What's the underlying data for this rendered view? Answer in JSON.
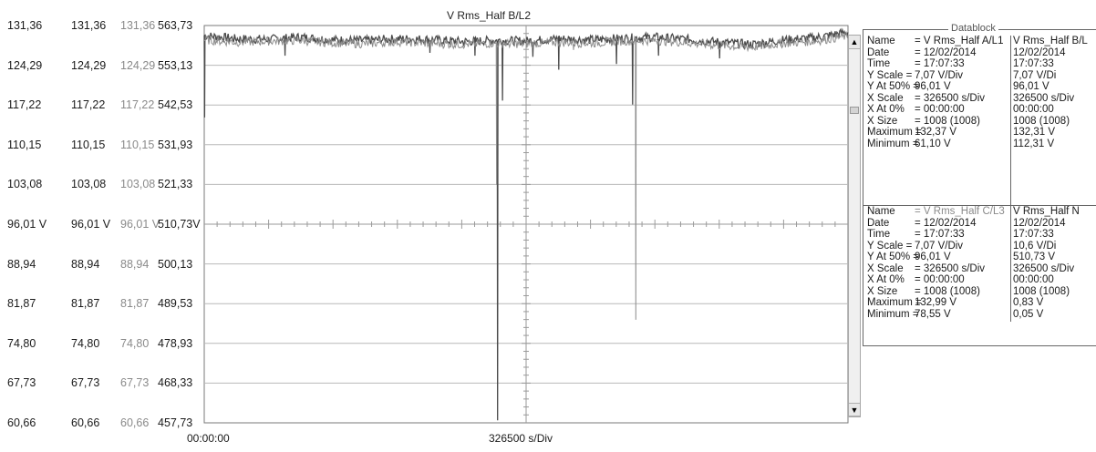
{
  "chart_data": {
    "type": "line",
    "title": "V Rms_Half B/L2",
    "x_start_label": "00:00:00",
    "x_scale_label": "326500 s/Div",
    "y_ticks": [
      {
        "a": "131,36",
        "b": "131,36",
        "c": "131,36",
        "n": "563,73"
      },
      {
        "a": "124,29",
        "b": "124,29",
        "c": "124,29",
        "n": "553,13"
      },
      {
        "a": "117,22",
        "b": "117,22",
        "c": "117,22",
        "n": "542,53"
      },
      {
        "a": "110,15",
        "b": "110,15",
        "c": "110,15",
        "n": "531,93"
      },
      {
        "a": "103,08",
        "b": "103,08",
        "c": "103,08",
        "n": "521,33"
      },
      {
        "a": "96,01 V",
        "b": "96,01 V",
        "c": "96,01 V",
        "n": "510,73V"
      },
      {
        "a": "88,94",
        "b": "88,94",
        "c": "88,94",
        "n": "500,13"
      },
      {
        "a": "81,87",
        "b": "81,87",
        "c": "81,87",
        "n": "489,53"
      },
      {
        "a": "74,80",
        "b": "74,80",
        "c": "74,80",
        "n": "478,93"
      },
      {
        "a": "67,73",
        "b": "67,73",
        "c": "67,73",
        "n": "468,33"
      },
      {
        "a": "60,66",
        "b": "60,66",
        "c": "60,66",
        "n": "457,73"
      }
    ],
    "ylim": [
      60.66,
      131.36
    ],
    "xlim": [
      0,
      3265000
    ],
    "x_divisions": 10,
    "y_divisions": 10,
    "grid": true,
    "series": [
      {
        "baseline": [
          [
            0,
            129.6
          ],
          [
            163250,
            129.0
          ],
          [
            326500,
            128.9
          ],
          [
            489750,
            129.3
          ],
          [
            653000,
            128.8
          ],
          [
            816250,
            128.7
          ],
          [
            979500,
            129.0
          ],
          [
            1142750,
            128.9
          ],
          [
            1306000,
            128.5
          ],
          [
            1469250,
            128.7
          ],
          [
            1632500,
            128.6
          ],
          [
            1795750,
            129.0
          ],
          [
            1959000,
            128.8
          ],
          [
            2122250,
            129.1
          ],
          [
            2285500,
            129.3
          ],
          [
            2448750,
            128.9
          ],
          [
            2612000,
            128.4
          ],
          [
            2775250,
            128.0
          ],
          [
            2938500,
            128.8
          ],
          [
            3101750,
            129.2
          ],
          [
            3265000,
            130.2
          ]
        ],
        "dips": [
          [
            0,
            115.0
          ],
          [
            408100,
            126.0
          ],
          [
            1142700,
            126.5
          ],
          [
            1371300,
            126.0
          ],
          [
            1486000,
            61.1
          ],
          [
            1511000,
            118.0
          ],
          [
            1665000,
            125.8
          ],
          [
            1796000,
            123.5
          ],
          [
            2089000,
            124.5
          ],
          [
            2171000,
            117.3
          ],
          [
            2302000,
            126.0
          ],
          [
            2612000,
            125.5
          ]
        ],
        "color": "#4a4a4a"
      },
      {
        "baseline": [
          [
            0,
            128.8
          ],
          [
            163250,
            128.4
          ],
          [
            326500,
            128.6
          ],
          [
            489750,
            128.7
          ],
          [
            653000,
            128.3
          ],
          [
            816250,
            128.1
          ],
          [
            979500,
            128.5
          ],
          [
            1142750,
            128.2
          ],
          [
            1306000,
            128.0
          ],
          [
            1469250,
            128.2
          ],
          [
            1632500,
            128.1
          ],
          [
            1795750,
            128.4
          ],
          [
            1959000,
            128.2
          ],
          [
            2122250,
            128.6
          ],
          [
            2285500,
            128.7
          ],
          [
            2448750,
            128.3
          ],
          [
            2612000,
            127.8
          ],
          [
            2775250,
            127.5
          ],
          [
            2938500,
            128.2
          ],
          [
            3101750,
            128.6
          ],
          [
            3265000,
            129.5
          ]
        ],
        "dips": [
          [
            1481000,
            103.0
          ],
          [
            1871000,
            127.0
          ],
          [
            2187000,
            79.0
          ]
        ],
        "color": "#8c8c8c"
      }
    ]
  },
  "datablock": {
    "title": "Datablock",
    "sections": [
      {
        "rows": [
          {
            "label": "Name",
            "value": "= V Rms_Half A/L1",
            "alt": "V Rms_Half B/L"
          },
          {
            "label": "Date",
            "value": "= 12/02/2014",
            "alt": "12/02/2014"
          },
          {
            "label": "Time",
            "value": "= 17:07:33",
            "alt": "17:07:33"
          },
          {
            "label": "Y Scale  =",
            "value": "7,07 V/Div",
            "alt": "7,07 V/Di"
          },
          {
            "label": "Y At 50% =",
            "value": "96,01 V",
            "alt": "96,01 V"
          },
          {
            "label": "X Scale",
            "value": "= 326500   s/Div",
            "alt": "326500   s/Div"
          },
          {
            "label": "X At 0%",
            "value": "= 00:00:00",
            "alt": "00:00:00"
          },
          {
            "label": "X Size",
            "value": "= 1008 (1008)",
            "alt": "1008 (1008)"
          },
          {
            "label": "Maximum =",
            "value": "132,37 V",
            "alt": "132,31 V"
          },
          {
            "label": "Minimum =",
            "value": "61,10 V",
            "alt": "112,31 V"
          }
        ]
      },
      {
        "rows": [
          {
            "label": "Name",
            "value": "= V Rms_Half C/L3",
            "alt": "V Rms_Half N"
          },
          {
            "label": "Date",
            "value": "= 12/02/2014",
            "alt": "12/02/2014"
          },
          {
            "label": "Time",
            "value": "= 17:07:33",
            "alt": "17:07:33"
          },
          {
            "label": "Y Scale  =",
            "value": "7,07 V/Div",
            "alt": "10,6  V/Di"
          },
          {
            "label": "Y At 50% =",
            "value": "96,01 V",
            "alt": "510,73 V"
          },
          {
            "label": "X Scale",
            "value": "= 326500   s/Div",
            "alt": "326500   s/Div"
          },
          {
            "label": "X At 0%",
            "value": "= 00:00:00",
            "alt": "00:00:00"
          },
          {
            "label": "X Size",
            "value": "= 1008 (1008)",
            "alt": "1008 (1008)"
          },
          {
            "label": "Maximum =",
            "value": "132,99 V",
            "alt": "0,83 V"
          },
          {
            "label": "Minimum =",
            "value": "78,55 V",
            "alt": "0,05 V"
          }
        ]
      }
    ]
  },
  "scrollbar": {
    "up_icon": "▲",
    "down_icon": "▼"
  }
}
